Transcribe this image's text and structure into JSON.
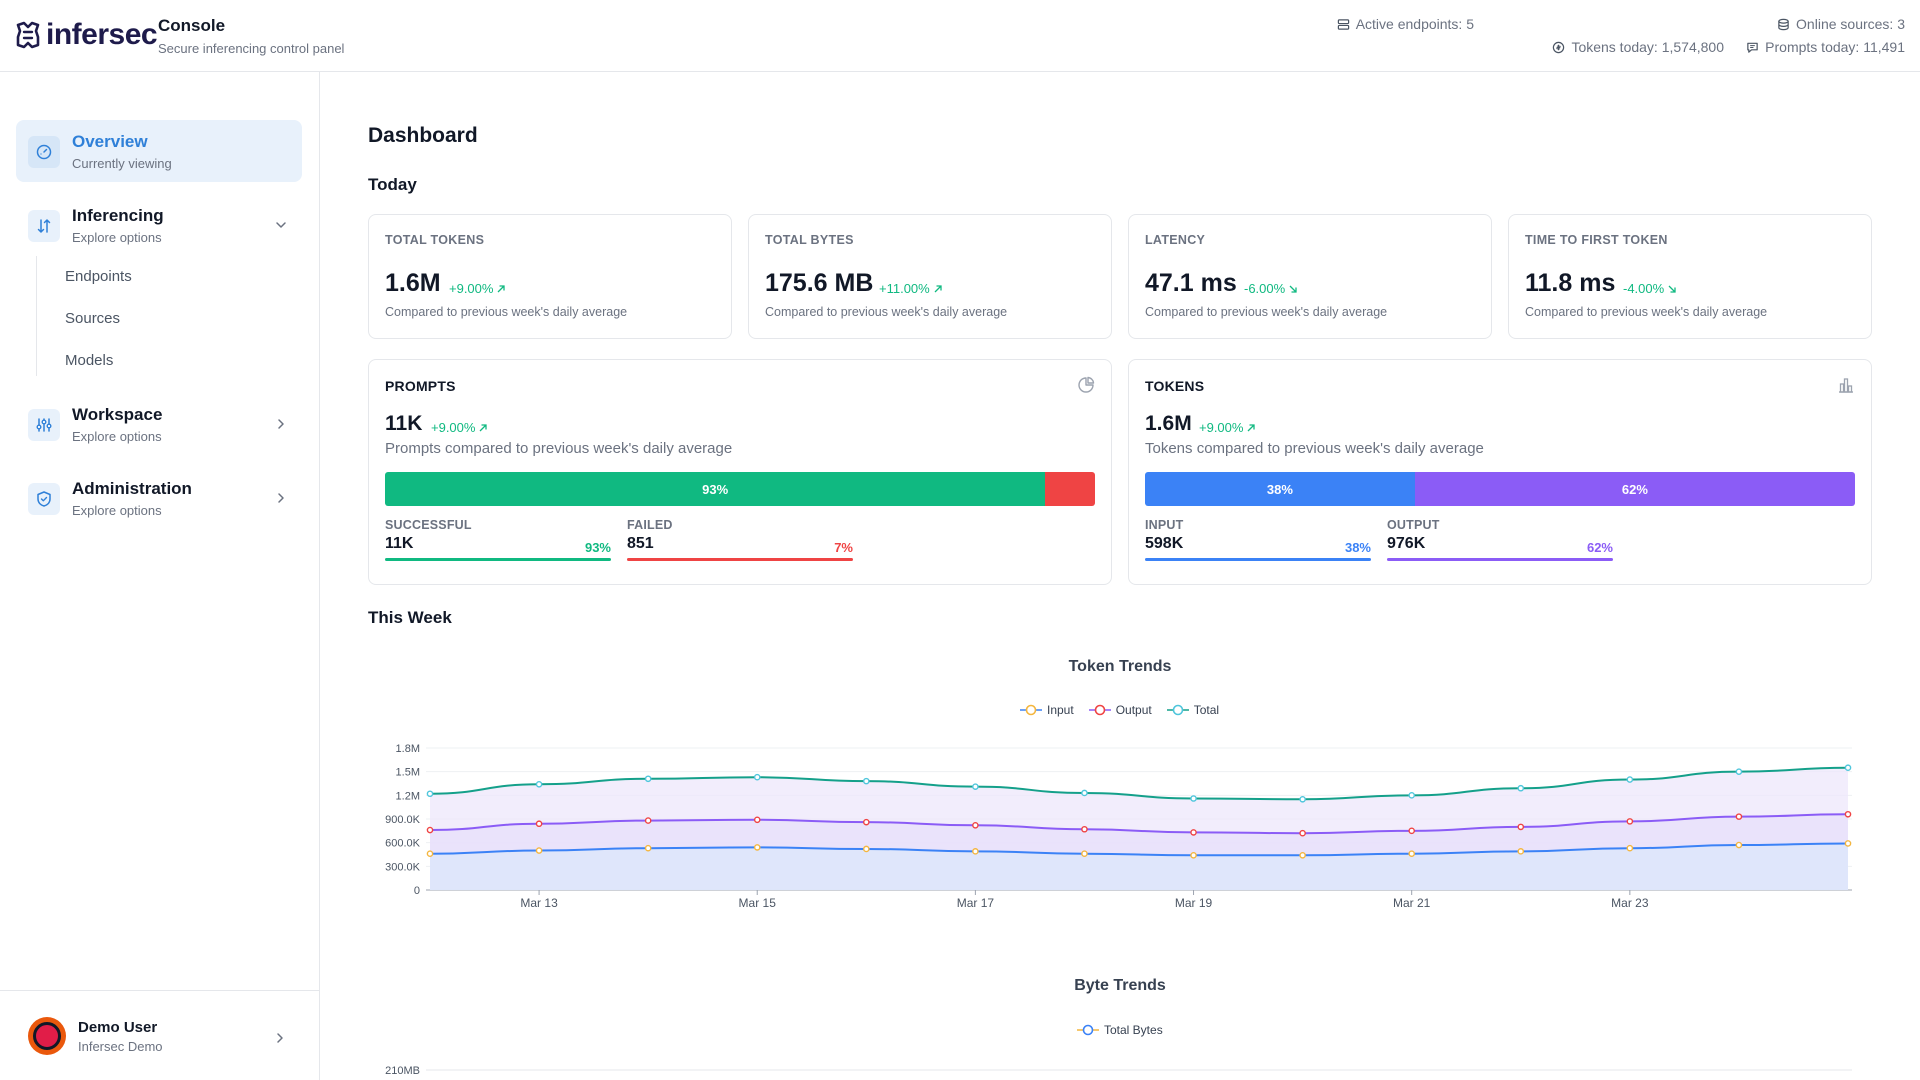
{
  "header": {
    "logo_text": "infersec",
    "app_title": "Console",
    "app_subtitle": "Secure inferencing control panel",
    "stats": {
      "active_endpoints": "Active endpoints: 5",
      "online_sources": "Online sources: 3",
      "tokens_today": "Tokens today: 1,574,800",
      "prompts_today": "Prompts today: 11,491"
    }
  },
  "sidebar": {
    "items": [
      {
        "title": "Overview",
        "subtitle": "Currently viewing"
      },
      {
        "title": "Inferencing",
        "subtitle": "Explore options"
      },
      {
        "title": "Workspace",
        "subtitle": "Explore options"
      },
      {
        "title": "Administration",
        "subtitle": "Explore options"
      }
    ],
    "subitems": [
      "Endpoints",
      "Sources",
      "Models"
    ],
    "user": {
      "name": "Demo User",
      "org": "Infersec Demo"
    }
  },
  "main": {
    "title": "Dashboard",
    "today_label": "Today",
    "week_label": "This Week",
    "kpis": [
      {
        "label": "TOTAL TOKENS",
        "value": "1.6M",
        "delta": "+9.00%",
        "direction": "up",
        "note": "Compared to previous week's daily average"
      },
      {
        "label": "TOTAL BYTES",
        "value": "175.6 MB",
        "delta": "+11.00%",
        "direction": "up",
        "note": "Compared to previous week's daily average"
      },
      {
        "label": "LATENCY",
        "value": "47.1 ms",
        "delta": "-6.00%",
        "direction": "down",
        "note": "Compared to previous week's daily average"
      },
      {
        "label": "TIME TO FIRST TOKEN",
        "value": "11.8 ms",
        "delta": "-4.00%",
        "direction": "down",
        "note": "Compared to previous week's daily average"
      }
    ],
    "prompts": {
      "label": "PROMPTS",
      "value": "11K",
      "delta": "+9.00%",
      "note": "Prompts compared to previous week's daily average",
      "bar": [
        {
          "label": "93%",
          "fraction": 0.93,
          "color": "#10b981"
        },
        {
          "label": "",
          "fraction": 0.07,
          "color": "#ef4444"
        }
      ],
      "stats": [
        {
          "label": "SUCCESSFUL",
          "value": "11K",
          "pct": "93%",
          "color": "#10b981"
        },
        {
          "label": "FAILED",
          "value": "851",
          "pct": "7%",
          "color": "#ef4444"
        }
      ]
    },
    "tokens": {
      "label": "TOKENS",
      "value": "1.6M",
      "delta": "+9.00%",
      "note": "Tokens compared to previous week's daily average",
      "bar": [
        {
          "label": "38%",
          "fraction": 0.38,
          "color": "#3b82f6"
        },
        {
          "label": "62%",
          "fraction": 0.62,
          "color": "#8b5cf6"
        }
      ],
      "stats": [
        {
          "label": "INPUT",
          "value": "598K",
          "pct": "38%",
          "color": "#3b82f6"
        },
        {
          "label": "OUTPUT",
          "value": "976K",
          "pct": "62%",
          "color": "#8b5cf6"
        }
      ]
    }
  },
  "chart_data": [
    {
      "type": "line",
      "title": "Token Trends",
      "x": [
        "Mar 12",
        "Mar 13",
        "Mar 14",
        "Mar 15",
        "Mar 16",
        "Mar 17",
        "Mar 18",
        "Mar 19",
        "Mar 20",
        "Mar 21",
        "Mar 22",
        "Mar 23",
        "Mar 24",
        "Mar 25"
      ],
      "x_ticks": [
        "Mar 13",
        "Mar 15",
        "Mar 17",
        "Mar 19",
        "Mar 21",
        "Mar 23"
      ],
      "y_ticks": [
        "0",
        "300.0K",
        "600.0K",
        "900.0K",
        "1.2M",
        "1.5M",
        "1.8M"
      ],
      "ylim": [
        0,
        1800000
      ],
      "grid": true,
      "legend_position": "top-center",
      "series": [
        {
          "name": "Input",
          "color": "#3b82f6",
          "marker_color": "#f4b63f",
          "area": "#dbe7fb",
          "values": [
            460000,
            500000,
            530000,
            540000,
            520000,
            490000,
            460000,
            440000,
            440000,
            460000,
            490000,
            530000,
            570000,
            590000
          ]
        },
        {
          "name": "Output",
          "color": "#8b5cf6",
          "marker_color": "#ef4444",
          "area": "#e7dffb",
          "values": [
            760000,
            840000,
            880000,
            890000,
            860000,
            820000,
            770000,
            730000,
            720000,
            750000,
            800000,
            870000,
            930000,
            960000
          ]
        },
        {
          "name": "Total",
          "color": "#14a08a",
          "marker_color": "#4fc6dc",
          "area": "#ede7fb",
          "values": [
            1220000,
            1340000,
            1410000,
            1430000,
            1380000,
            1310000,
            1230000,
            1160000,
            1150000,
            1200000,
            1290000,
            1400000,
            1500000,
            1550000
          ]
        }
      ]
    },
    {
      "type": "line",
      "title": "Byte Trends",
      "y_ticks": [
        "210MB"
      ],
      "legend_position": "top-center",
      "series": [
        {
          "name": "Total Bytes",
          "color": "#3b82f6",
          "marker_color": "#f4b63f",
          "values": []
        }
      ]
    }
  ]
}
